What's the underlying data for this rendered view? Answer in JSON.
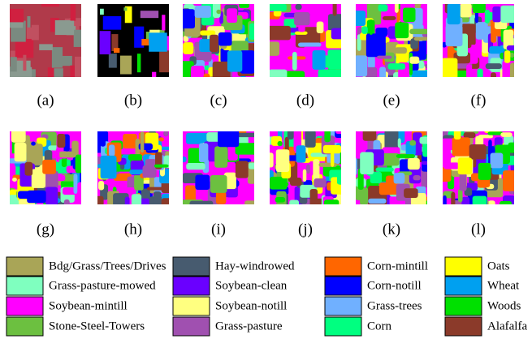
{
  "panels": [
    {
      "label": "(a)"
    },
    {
      "label": "(b)"
    },
    {
      "label": "(c)"
    },
    {
      "label": "(d)"
    },
    {
      "label": "(e)"
    },
    {
      "label": "(f)"
    },
    {
      "label": "(g)"
    },
    {
      "label": "(h)"
    },
    {
      "label": "(i)"
    },
    {
      "label": "(j)"
    },
    {
      "label": "(k)"
    },
    {
      "label": "(l)"
    }
  ],
  "legend": [
    {
      "name": "Bdg/Grass/Trees/Drives",
      "color": "#a9a557"
    },
    {
      "name": "Grass-pasture-mowed",
      "color": "#7fffbf"
    },
    {
      "name": "Soybean-mintill",
      "color": "#ff00ff"
    },
    {
      "name": "Stone-Steel-Towers",
      "color": "#6cc040"
    },
    {
      "name": "Hay-windrowed",
      "color": "#475b6f"
    },
    {
      "name": "Soybean-clean",
      "color": "#6a00ff"
    },
    {
      "name": "Soybean-notill",
      "color": "#ffff80"
    },
    {
      "name": "Grass-pasture",
      "color": "#a050b0"
    },
    {
      "name": "Corn-mintill",
      "color": "#ff6600"
    },
    {
      "name": "Corn-notill",
      "color": "#0000ff"
    },
    {
      "name": "Grass-trees",
      "color": "#70b0ff"
    },
    {
      "name": "Corn",
      "color": "#00ff80"
    },
    {
      "name": "Oats",
      "color": "#ffff00"
    },
    {
      "name": "Wheat",
      "color": "#00a0f0"
    },
    {
      "name": "Woods",
      "color": "#00e000"
    },
    {
      "name": "Alafalfa",
      "color": "#8b3a2a"
    }
  ]
}
